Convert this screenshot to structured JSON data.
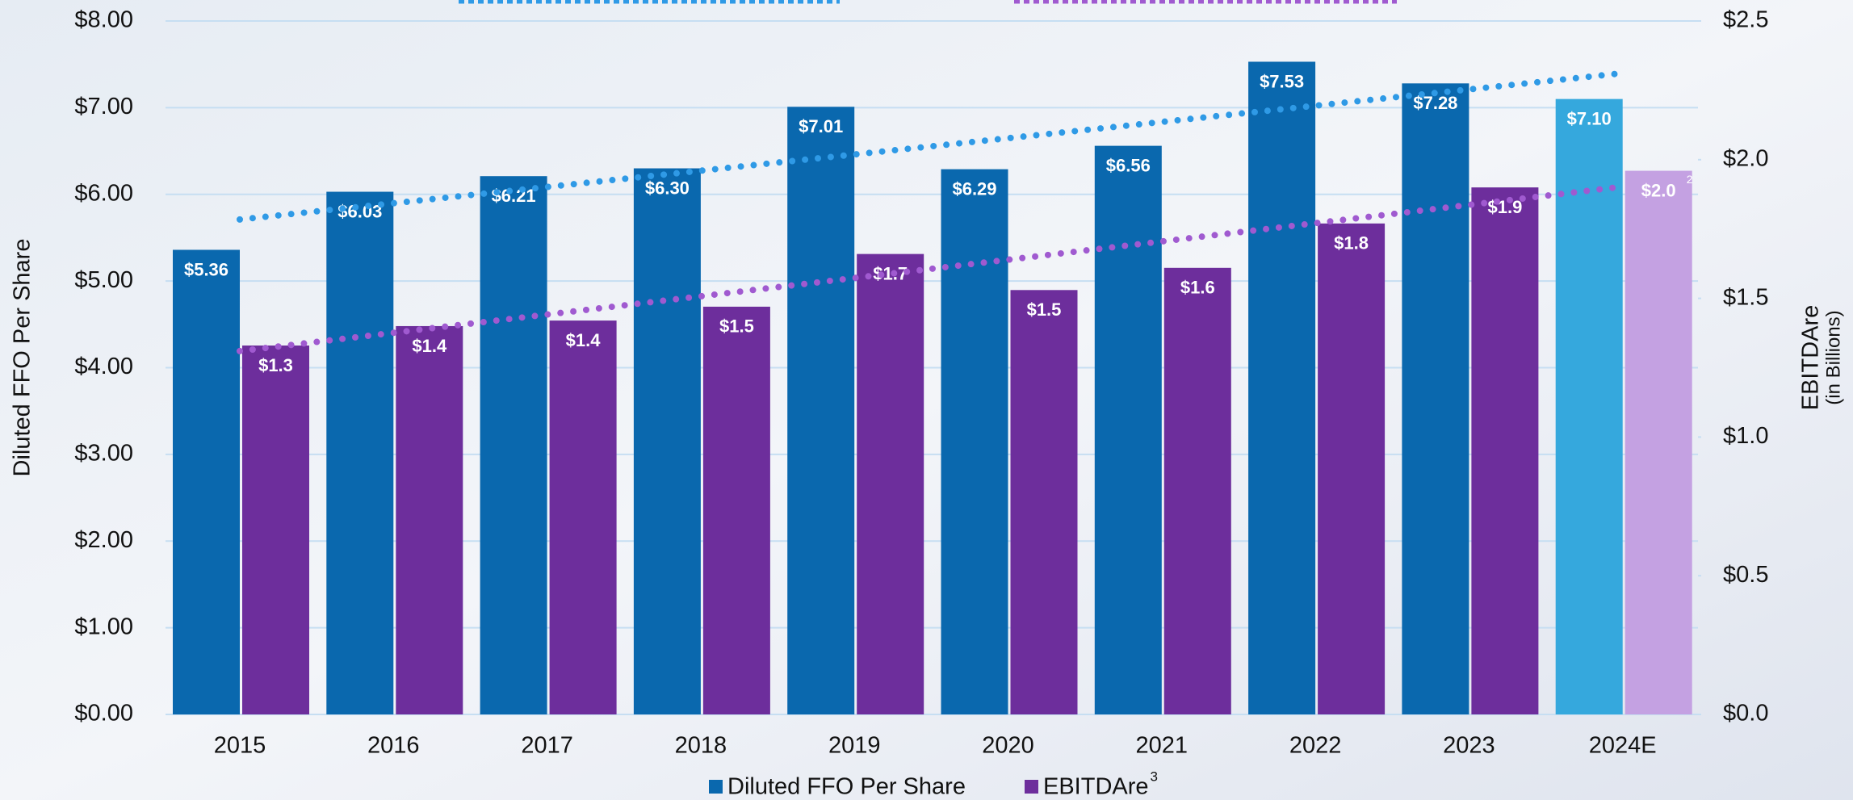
{
  "chart_data": {
    "type": "bar",
    "ylabel": "Diluted FFO Per Share",
    "y2label": "EBITDAre",
    "y2label_sub": "(in Billions)",
    "categories": [
      "2015",
      "2016",
      "2017",
      "2018",
      "2019",
      "2020",
      "2021",
      "2022",
      "2023",
      "2024E"
    ],
    "series": [
      {
        "name": "Diluted FFO Per Share",
        "color": "#0a68ae",
        "colors": [
          "#0a68ae",
          "#0a68ae",
          "#0a68ae",
          "#0a68ae",
          "#0a68ae",
          "#0a68ae",
          "#0a68ae",
          "#0a68ae",
          "#0a68ae",
          "#35a8dd"
        ],
        "values": [
          5.36,
          6.03,
          6.21,
          6.3,
          7.01,
          6.29,
          6.56,
          7.53,
          7.28,
          7.1
        ],
        "value_labels": [
          "$5.36",
          "$6.03",
          "$6.21",
          "$6.30",
          "$7.01",
          "$6.29",
          "$6.56",
          "$7.53",
          "$7.28",
          "$7.10"
        ]
      },
      {
        "name": "EBITDAre",
        "footnote": "3",
        "color": "#6d2e9c",
        "axis": "y2",
        "colors": [
          "#6d2e9c",
          "#6d2e9c",
          "#6d2e9c",
          "#6d2e9c",
          "#6d2e9c",
          "#6d2e9c",
          "#6d2e9c",
          "#6d2e9c",
          "#6d2e9c",
          "#c4a1e2"
        ],
        "values": [
          1.33,
          1.4,
          1.42,
          1.47,
          1.66,
          1.53,
          1.61,
          1.77,
          1.9,
          1.96
        ],
        "value_labels": [
          "$1.3",
          "$1.4",
          "$1.4",
          "$1.5",
          "$1.7",
          "$1.5",
          "$1.6",
          "$1.8",
          "$1.9",
          "$2.0"
        ],
        "label_footnotes": [
          null,
          null,
          null,
          null,
          null,
          null,
          null,
          null,
          null,
          "2"
        ]
      }
    ],
    "trendlines": [
      {
        "color": "#2f9ae6",
        "values": [
          5.71,
          7.39
        ]
      },
      {
        "color": "#a05ad0",
        "axis": "y2",
        "values": [
          1.31,
          1.9
        ]
      }
    ],
    "ylim": [
      0,
      8
    ],
    "yticks": [
      {
        "value": 0,
        "label": "$0.00"
      },
      {
        "value": 1,
        "label": "$1.00"
      },
      {
        "value": 2,
        "label": "$2.00"
      },
      {
        "value": 3,
        "label": "$3.00"
      },
      {
        "value": 4,
        "label": "$4.00"
      },
      {
        "value": 5,
        "label": "$5.00"
      },
      {
        "value": 6,
        "label": "$6.00"
      },
      {
        "value": 7,
        "label": "$7.00"
      },
      {
        "value": 8,
        "label": "$8.00"
      }
    ],
    "y2lim": [
      0,
      2.5
    ],
    "y2ticks": [
      {
        "value": 0,
        "label": "$0.0"
      },
      {
        "value": 0.5,
        "label": "$0.5"
      },
      {
        "value": 1,
        "label": "$1.0"
      },
      {
        "value": 1.5,
        "label": "$1.5"
      },
      {
        "value": 2,
        "label": "$2.0"
      },
      {
        "value": 2.5,
        "label": "$2.5"
      }
    ],
    "grid": true,
    "legend": "bottom"
  }
}
